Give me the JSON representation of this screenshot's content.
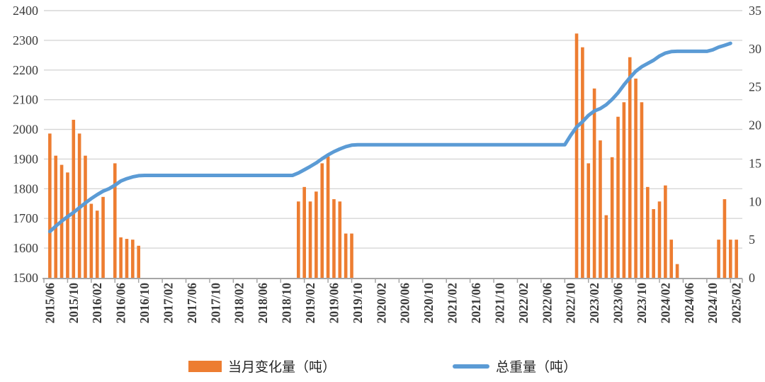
{
  "chart_data": {
    "type": "combo-bar-line",
    "title": "",
    "x": {
      "start": "2015/06",
      "end": "2025/02",
      "num_months": 117,
      "tick_labels": [
        "2015/06",
        "2015/10",
        "2016/02",
        "2016/06",
        "2016/10",
        "2017/02",
        "2017/06",
        "2017/10",
        "2018/02",
        "2018/06",
        "2018/10",
        "2019/02",
        "2019/06",
        "2019/10",
        "2020/02",
        "2020/06",
        "2020/10",
        "2021/02",
        "2021/06",
        "2021/10",
        "2022/02",
        "2022/06",
        "2022/10",
        "2023/02",
        "2023/06",
        "2023/10",
        "2024/02",
        "2024/06",
        "2024/10",
        "2025/02"
      ],
      "tick_every_months": 4,
      "label_rotation_deg": 90
    },
    "y_left": {
      "min": 1500,
      "max": 2400,
      "step": 100,
      "ticks": [
        1500,
        1600,
        1700,
        1800,
        1900,
        2000,
        2100,
        2200,
        2300,
        2400
      ],
      "gridlines": true
    },
    "y_right": {
      "min": 0,
      "max": 35,
      "step": 5,
      "ticks": [
        0,
        5,
        10,
        15,
        20,
        25,
        30,
        35
      ]
    },
    "series": [
      {
        "name": "当月变化量（吨）",
        "type": "bar",
        "axis": "right",
        "color": "#ED7D31",
        "points": {
          "2015/06": 18.9,
          "2015/07": 16.0,
          "2015/08": 14.8,
          "2015/09": 13.8,
          "2015/10": 20.7,
          "2015/11": 18.9,
          "2015/12": 16.0,
          "2016/01": 9.7,
          "2016/02": 8.8,
          "2016/03": 10.6,
          "2016/05": 15.0,
          "2016/06": 5.3,
          "2016/07": 5.1,
          "2016/08": 5.0,
          "2016/09": 4.2,
          "2018/12": 10.0,
          "2019/01": 11.9,
          "2019/02": 10.0,
          "2019/03": 11.3,
          "2019/04": 15.0,
          "2019/05": 15.9,
          "2019/06": 10.3,
          "2019/07": 10.0,
          "2019/08": 5.8,
          "2019/09": 5.8,
          "2022/11": 32.0,
          "2022/12": 30.2,
          "2023/01": 15.0,
          "2023/02": 24.8,
          "2023/03": 18.0,
          "2023/04": 8.2,
          "2023/05": 15.8,
          "2023/06": 21.1,
          "2023/07": 23.0,
          "2023/08": 28.9,
          "2023/09": 26.1,
          "2023/10": 23.0,
          "2023/11": 11.9,
          "2023/12": 9.0,
          "2024/01": 10.0,
          "2024/02": 12.1,
          "2024/03": 5.0,
          "2024/04": 1.8,
          "2024/11": 5.0,
          "2024/12": 10.3,
          "2025/01": 5.0,
          "2025/02": 5.0
        }
      },
      {
        "name": "总重量（吨）",
        "type": "line",
        "axis": "left",
        "color": "#5B9BD5",
        "values": [
          1656,
          1674,
          1691,
          1706,
          1720,
          1736,
          1752,
          1767,
          1780,
          1792,
          1800,
          1812,
          1826,
          1834,
          1840,
          1844,
          1845,
          1845,
          1845,
          1845,
          1845,
          1845,
          1845,
          1845,
          1845,
          1845,
          1845,
          1845,
          1845,
          1845,
          1845,
          1845,
          1845,
          1845,
          1845,
          1845,
          1845,
          1845,
          1845,
          1845,
          1845,
          1845,
          1853,
          1864,
          1875,
          1887,
          1901,
          1914,
          1925,
          1934,
          1942,
          1947,
          1948,
          1948,
          1948,
          1948,
          1948,
          1948,
          1948,
          1948,
          1948,
          1948,
          1948,
          1948,
          1948,
          1948,
          1948,
          1948,
          1948,
          1948,
          1948,
          1948,
          1948,
          1948,
          1948,
          1948,
          1948,
          1948,
          1948,
          1948,
          1948,
          1948,
          1948,
          1948,
          1948,
          1948,
          1948,
          1948,
          1980,
          2008,
          2026,
          2047,
          2062,
          2070,
          2083,
          2101,
          2123,
          2150,
          2174,
          2196,
          2211,
          2222,
          2233,
          2247,
          2257,
          2262,
          2263,
          2263,
          2263,
          2263,
          2263,
          2263,
          2268,
          2277,
          2283,
          2290
        ]
      }
    ],
    "layout": {
      "legend_position": "bottom-center",
      "gridline_color": "#D6D6D6",
      "axis_line_color": "#A6A6A6",
      "label_color": "#3b3b3b",
      "background": "#ffffff"
    }
  },
  "legend": {
    "items": [
      {
        "name": "当月变化量（吨）",
        "swatch": "bar",
        "color": "#ED7D31"
      },
      {
        "name": "总重量（吨）",
        "swatch": "line",
        "color": "#5B9BD5"
      }
    ]
  }
}
